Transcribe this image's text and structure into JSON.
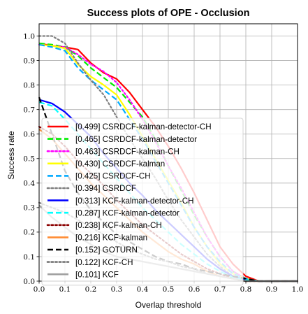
{
  "chart_data": {
    "type": "line",
    "title": "Success plots of OPE - Occlusion",
    "xlabel": "Overlap threshold",
    "ylabel": "Success rate",
    "xlim": [
      0,
      1
    ],
    "ylim": [
      0,
      1.05
    ],
    "x_ticks": [
      "0.0",
      "0.1",
      "0.2",
      "0.3",
      "0.4",
      "0.5",
      "0.6",
      "0.7",
      "0.8",
      "0.9",
      "1.0"
    ],
    "y_ticks": [
      "0.0",
      "0.1",
      "0.2",
      "0.3",
      "0.4",
      "0.5",
      "0.6",
      "0.7",
      "0.8",
      "0.9",
      "1.0"
    ],
    "grid": true,
    "legend_position": "lower-left",
    "x": [
      0,
      0.05,
      0.1,
      0.15,
      0.2,
      0.25,
      0.3,
      0.35,
      0.4,
      0.45,
      0.5,
      0.55,
      0.6,
      0.65,
      0.7,
      0.75,
      0.8,
      0.85,
      0.9,
      0.95,
      1.0
    ],
    "series": [
      {
        "name": "[0.499] CSRDCF-kalman-detector-CH",
        "color": "#ff0000",
        "dash": "solid",
        "values": [
          0.97,
          0.96,
          0.955,
          0.945,
          0.89,
          0.85,
          0.825,
          0.77,
          0.7,
          0.63,
          0.55,
          0.46,
          0.36,
          0.25,
          0.14,
          0.07,
          0.02,
          0.0,
          0.0,
          0.0,
          0.0
        ]
      },
      {
        "name": "[0.465] CSRDCF-kalman-detector",
        "color": "#00ee00",
        "dash": "dashed",
        "values": [
          0.97,
          0.965,
          0.955,
          0.92,
          0.87,
          0.83,
          0.79,
          0.73,
          0.67,
          0.58,
          0.47,
          0.37,
          0.27,
          0.18,
          0.1,
          0.04,
          0.01,
          0.0,
          0.0,
          0.0,
          0.0
        ]
      },
      {
        "name": "[0.463] CSRDCF-kalman-CH",
        "color": "#ff00ff",
        "dash": "dotted",
        "values": [
          0.965,
          0.96,
          0.955,
          0.925,
          0.885,
          0.855,
          0.81,
          0.74,
          0.66,
          0.57,
          0.47,
          0.38,
          0.28,
          0.18,
          0.1,
          0.04,
          0.01,
          0.0,
          0.0,
          0.0,
          0.0
        ]
      },
      {
        "name": "[0.430] CSRDCF-kalman",
        "color": "#ffff00",
        "dash": "solid",
        "values": [
          0.965,
          0.96,
          0.95,
          0.885,
          0.835,
          0.8,
          0.76,
          0.68,
          0.59,
          0.5,
          0.41,
          0.32,
          0.22,
          0.14,
          0.07,
          0.03,
          0.01,
          0.0,
          0.0,
          0.0,
          0.0
        ]
      },
      {
        "name": "[0.425] CSRDCF-CH",
        "color": "#00aaff",
        "dash": "dashed",
        "values": [
          0.965,
          0.955,
          0.94,
          0.87,
          0.82,
          0.78,
          0.74,
          0.66,
          0.58,
          0.49,
          0.4,
          0.31,
          0.22,
          0.14,
          0.08,
          0.03,
          0.01,
          0.0,
          0.0,
          0.0,
          0.0
        ]
      },
      {
        "name": "[0.394] CSRDCF",
        "color": "#808080",
        "dash": "dotted",
        "values": [
          1.0,
          1.0,
          0.97,
          0.89,
          0.82,
          0.76,
          0.67,
          0.58,
          0.5,
          0.42,
          0.33,
          0.25,
          0.18,
          0.11,
          0.06,
          0.02,
          0.0,
          0.0,
          0.0,
          0.0,
          0.0
        ]
      },
      {
        "name": "[0.313] KCF-kalman-detector-CH",
        "color": "#0000ff",
        "dash": "solid",
        "values": [
          0.74,
          0.725,
          0.69,
          0.64,
          0.59,
          0.52,
          0.46,
          0.4,
          0.35,
          0.29,
          0.24,
          0.19,
          0.14,
          0.09,
          0.05,
          0.02,
          0.005,
          0.0,
          0.0,
          0.0,
          0.0
        ]
      },
      {
        "name": "[0.287] KCF-kalman-detector",
        "color": "#00ffff",
        "dash": "dashed",
        "values": [
          0.73,
          0.715,
          0.66,
          0.6,
          0.54,
          0.48,
          0.42,
          0.36,
          0.3,
          0.25,
          0.2,
          0.15,
          0.11,
          0.07,
          0.04,
          0.015,
          0.005,
          0.0,
          0.0,
          0.0,
          0.0
        ]
      },
      {
        "name": "[0.238] KCF-kalman-CH",
        "color": "#8b0000",
        "dash": "dotted",
        "values": [
          0.63,
          0.6,
          0.55,
          0.49,
          0.44,
          0.39,
          0.33,
          0.28,
          0.23,
          0.19,
          0.15,
          0.11,
          0.08,
          0.05,
          0.03,
          0.01,
          0.0,
          0.0,
          0.0,
          0.0,
          0.0
        ]
      },
      {
        "name": "[0.216] KCF-kalman",
        "color": "#ff8c33",
        "dash": "solid",
        "values": [
          0.62,
          0.58,
          0.52,
          0.46,
          0.4,
          0.35,
          0.3,
          0.25,
          0.2,
          0.16,
          0.12,
          0.09,
          0.07,
          0.04,
          0.02,
          0.01,
          0.0,
          0.0,
          0.0,
          0.0,
          0.0
        ]
      },
      {
        "name": "[0.152] GOTURN",
        "color": "#000000",
        "dash": "dashed",
        "values": [
          0.75,
          0.6,
          0.45,
          0.36,
          0.29,
          0.24,
          0.19,
          0.16,
          0.13,
          0.1,
          0.08,
          0.07,
          0.05,
          0.04,
          0.03,
          0.02,
          0.01,
          0.0,
          0.0,
          0.0,
          0.0
        ]
      },
      {
        "name": "[0.122] KCF-CH",
        "color": "#777777",
        "dash": "dotted",
        "values": [
          0.32,
          0.3,
          0.28,
          0.25,
          0.22,
          0.19,
          0.16,
          0.13,
          0.11,
          0.09,
          0.08,
          0.06,
          0.05,
          0.03,
          0.02,
          0.01,
          0.0,
          0.0,
          0.0,
          0.0,
          0.0
        ]
      },
      {
        "name": "[0.101] KCF",
        "color": "#a0a0a0",
        "dash": "solid",
        "values": [
          0.31,
          0.26,
          0.22,
          0.18,
          0.15,
          0.12,
          0.1,
          0.09,
          0.08,
          0.07,
          0.06,
          0.05,
          0.04,
          0.03,
          0.02,
          0.01,
          0.0,
          0.0,
          0.0,
          0.0,
          0.0
        ]
      }
    ]
  }
}
